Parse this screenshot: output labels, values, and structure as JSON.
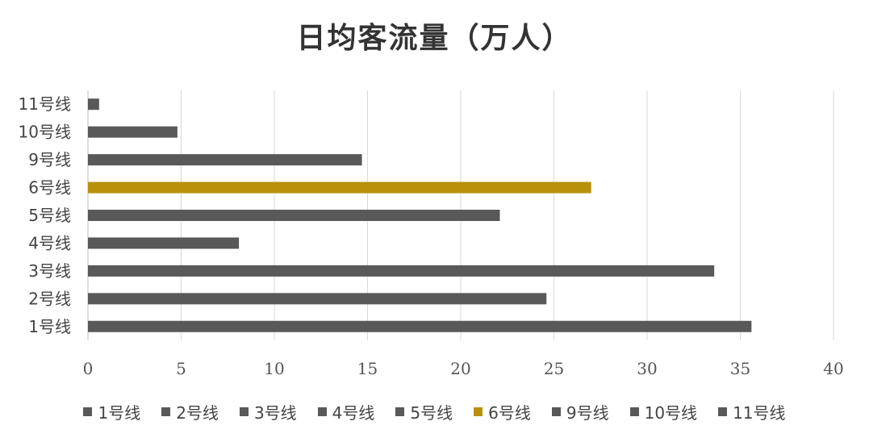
{
  "chart_data": {
    "type": "bar",
    "orientation": "horizontal",
    "title": "日均客流量（万人）",
    "categories": [
      "1号线",
      "2号线",
      "3号线",
      "4号线",
      "5号线",
      "6号线",
      "9号线",
      "10号线",
      "11号线"
    ],
    "values": [
      35.6,
      24.6,
      33.6,
      8.1,
      22.1,
      27.0,
      14.7,
      4.8,
      0.6
    ],
    "colors": [
      "#595959",
      "#595959",
      "#595959",
      "#595959",
      "#595959",
      "#B8900A",
      "#595959",
      "#595959",
      "#595959"
    ],
    "xlim": [
      0,
      40
    ],
    "xticks": [
      0,
      5,
      10,
      15,
      20,
      25,
      30,
      35,
      40
    ],
    "grid": "vertical",
    "legend_position": "bottom",
    "legend": [
      "1号线",
      "2号线",
      "3号线",
      "4号线",
      "5号线",
      "6号线",
      "9号线",
      "10号线",
      "11号线"
    ]
  }
}
